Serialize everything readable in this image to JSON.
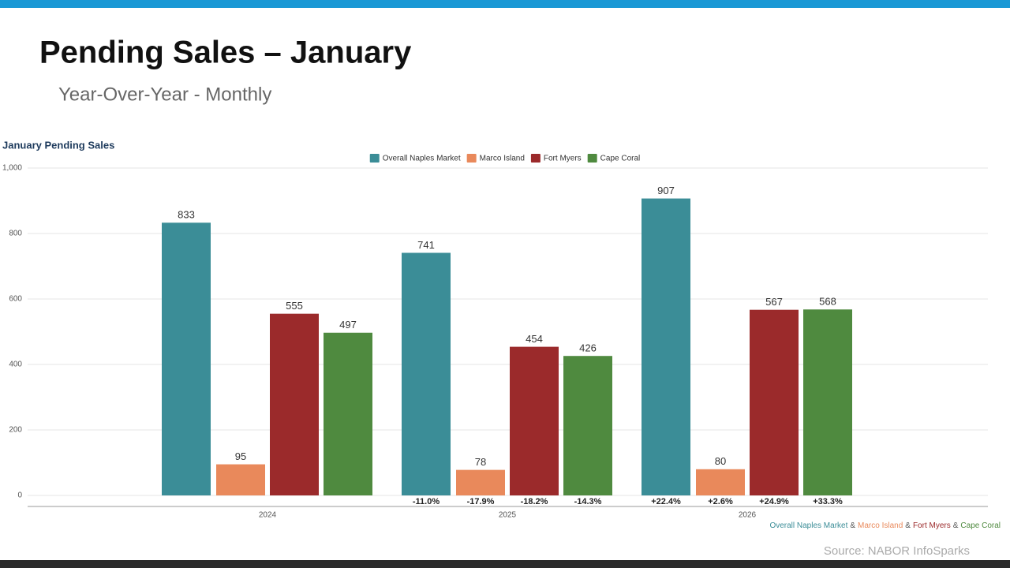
{
  "slide": {
    "title": "Pending Sales – January",
    "subtitle": "Year-Over-Year - Monthly",
    "source": "Source: NABOR InfoSparks"
  },
  "chart_data": {
    "type": "bar",
    "title": "January Pending Sales",
    "categories": [
      "2024",
      "2025",
      "2026"
    ],
    "series": [
      {
        "name": "Overall Naples Market",
        "color": "#3b8d97",
        "values": [
          833,
          741,
          907
        ],
        "change_labels": [
          null,
          "-11.0%",
          "+22.4%"
        ]
      },
      {
        "name": "Marco Island",
        "color": "#e9895b",
        "values": [
          95,
          78,
          80
        ],
        "change_labels": [
          null,
          "-17.9%",
          "+2.6%"
        ]
      },
      {
        "name": "Fort Myers",
        "color": "#9b2a2b",
        "values": [
          555,
          454,
          567
        ],
        "change_labels": [
          null,
          "-18.2%",
          "+24.9%"
        ]
      },
      {
        "name": "Cape Coral",
        "color": "#4f8a3f",
        "values": [
          497,
          426,
          568
        ],
        "change_labels": [
          null,
          "-14.3%",
          "+33.3%"
        ]
      }
    ],
    "ylim": [
      0,
      1000
    ],
    "yticks": [
      0,
      200,
      400,
      600,
      800,
      {
        "value": 1000,
        "label": "1,000"
      }
    ],
    "grid": true,
    "legend": "top",
    "footer_separator": "&"
  }
}
